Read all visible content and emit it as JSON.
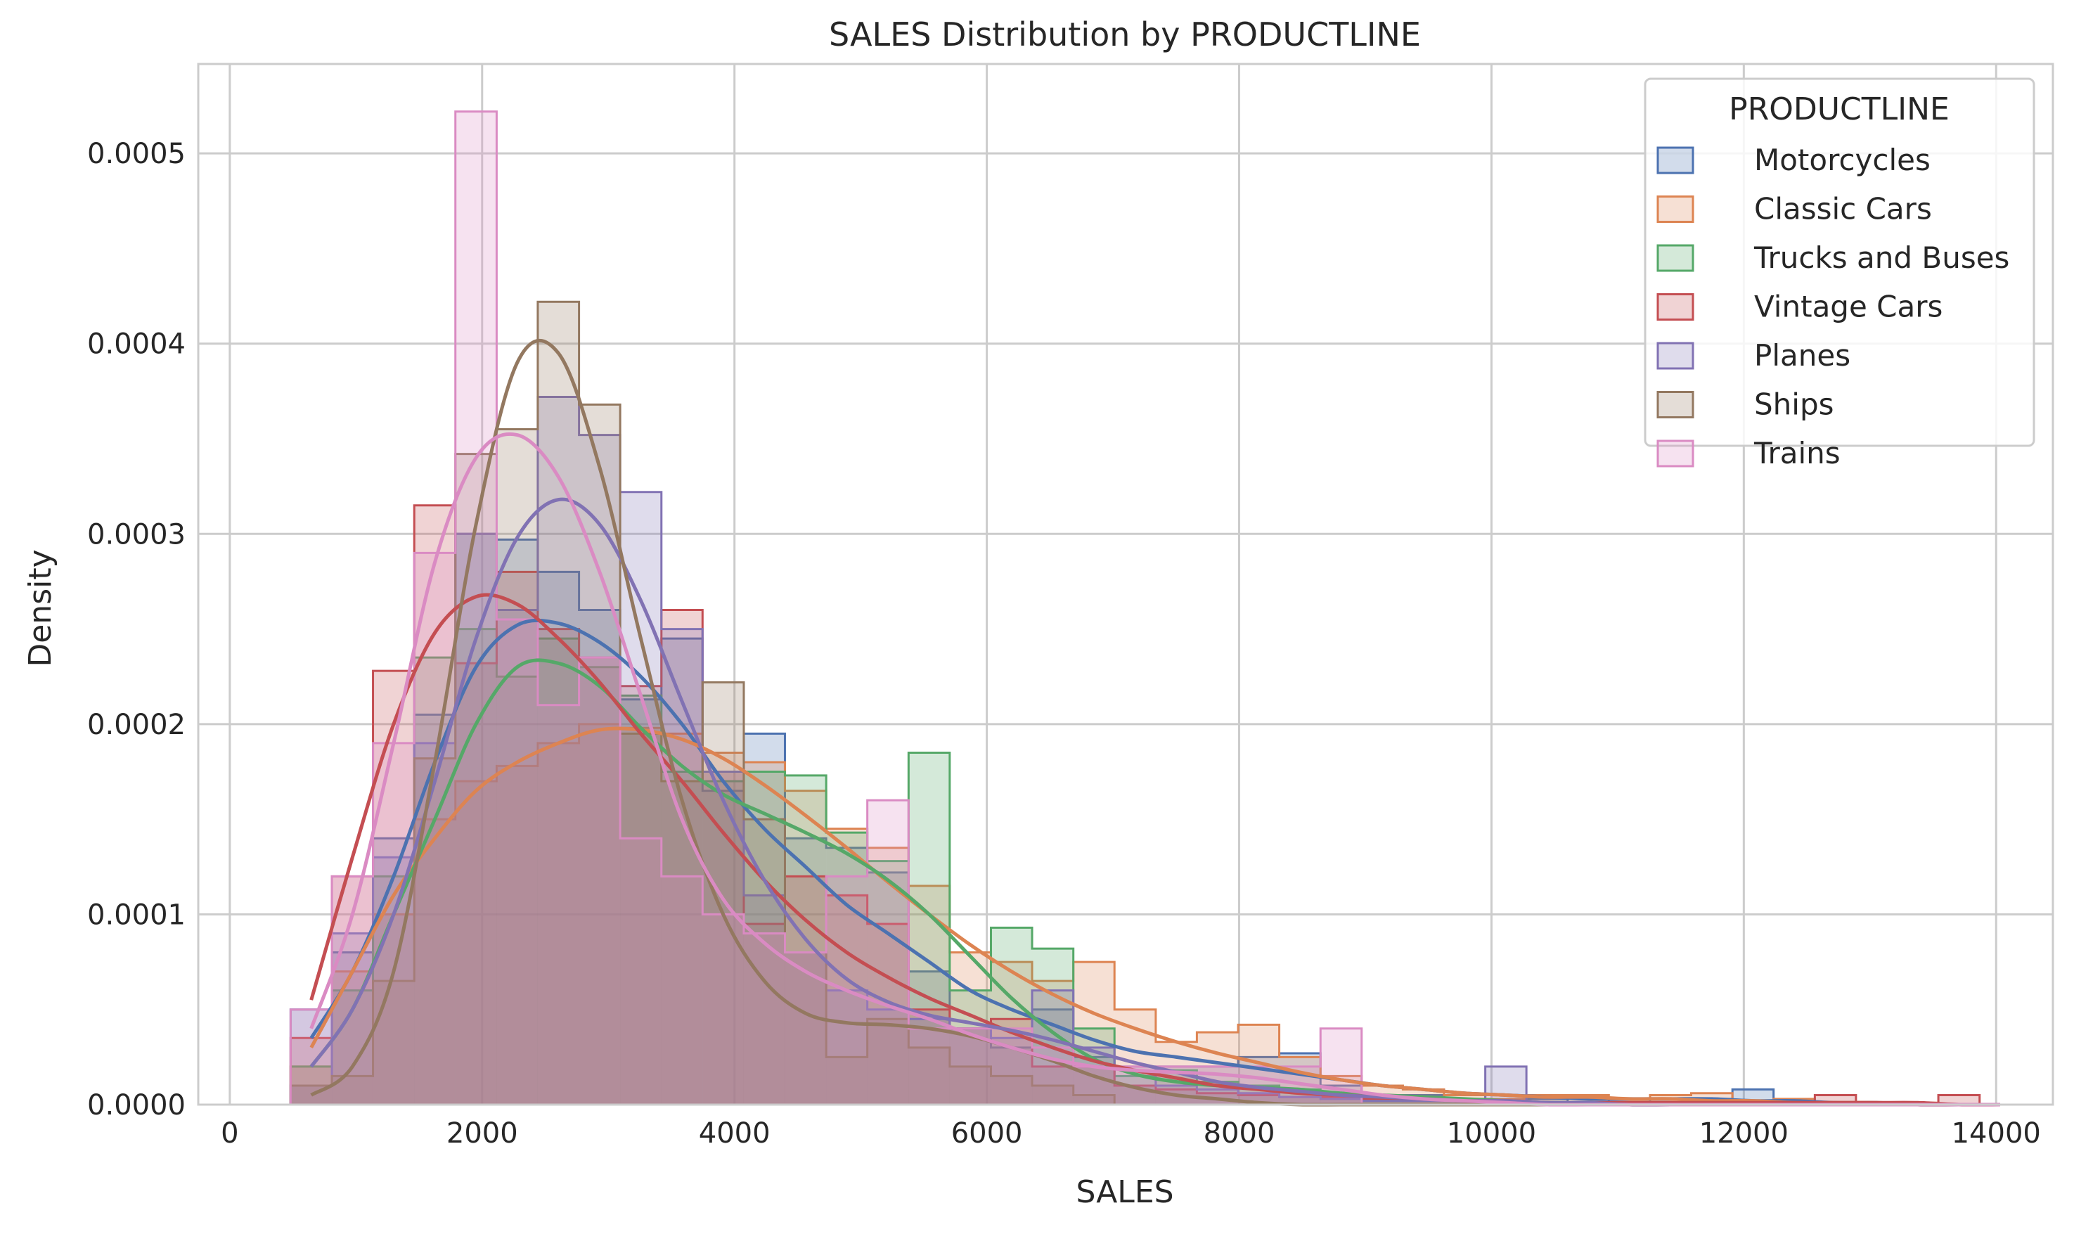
{
  "chart_data": {
    "type": "histogram",
    "title": "SALES Distribution by PRODUCTLINE",
    "xlabel": "SALES",
    "ylabel": "Density",
    "xlim": [
      -250,
      14450
    ],
    "ylim": [
      0,
      0.000547
    ],
    "x_ticks": [
      0,
      2000,
      4000,
      6000,
      8000,
      10000,
      12000,
      14000
    ],
    "x_tick_labels": [
      "0",
      "2000",
      "4000",
      "6000",
      "8000",
      "10000",
      "12000",
      "14000"
    ],
    "y_ticks": [
      0,
      0.0001,
      0.0002,
      0.0003,
      0.0004,
      0.0005
    ],
    "y_tick_labels": [
      "0.0000",
      "0.0001",
      "0.0002",
      "0.0003",
      "0.0004",
      "0.0005"
    ],
    "grid": true,
    "legend": {
      "title": "PRODUCTLINE",
      "position": "top-right"
    },
    "bins": {
      "edges": [
        482,
        809,
        1135,
        1462,
        1788,
        2115,
        2441,
        2768,
        3094,
        3421,
        3747,
        4074,
        4400,
        4727,
        5053,
        5380,
        5706,
        6033,
        6359,
        6686,
        7012,
        7339,
        7665,
        7992,
        8318,
        8645,
        8971,
        9298,
        9624,
        9951,
        10277,
        10604,
        10930,
        11257,
        11583,
        11910,
        12236,
        12563,
        12889,
        13216,
        13542,
        13869,
        14195
      ]
    },
    "series": [
      {
        "name": "Motorcycles",
        "color": "#4c72b0",
        "values": [
          5e-05,
          8e-05,
          0.00014,
          0.000205,
          0.0003,
          0.000297,
          0.00028,
          0.00026,
          0.000213,
          0.000245,
          0.000165,
          0.000195,
          0.00014,
          0.000135,
          0.000122,
          7e-05,
          4e-05,
          3e-05,
          5e-05,
          2.5e-05,
          1e-05,
          2e-05,
          2e-05,
          2.5e-05,
          2.7e-05,
          1e-05,
          5e-06,
          5e-06,
          3e-06,
          0,
          3e-06,
          0,
          3e-06,
          0,
          3e-06,
          8e-06,
          0,
          0,
          0,
          0,
          0,
          0
        ],
        "kde": [
          3.5e-05,
          7e-05,
          0.00012,
          0.00018,
          0.00023,
          0.000252,
          0.000253,
          0.000243,
          0.000225,
          0.0002,
          0.00017,
          0.000145,
          0.000125,
          0.000105,
          9e-05,
          7.5e-05,
          6e-05,
          5e-05,
          4.2e-05,
          3.4e-05,
          2.8e-05,
          2.5e-05,
          2.2e-05,
          1.9e-05,
          1.6e-05,
          1.3e-05,
          1e-05,
          8e-06,
          6e-06,
          5e-06,
          4e-06,
          3e-06,
          3e-06,
          3e-06,
          3e-06,
          2e-06,
          2e-06,
          1e-06,
          1e-06,
          0,
          0,
          0
        ]
      },
      {
        "name": "Classic Cars",
        "color": "#dd8452",
        "values": [
          2e-05,
          7e-05,
          0.0001,
          0.00015,
          0.00017,
          0.000178,
          0.00019,
          0.0002,
          0.000198,
          0.000195,
          0.000185,
          0.00018,
          0.000165,
          0.000145,
          0.000135,
          0.000115,
          8e-05,
          7.5e-05,
          6.5e-05,
          7.5e-05,
          5e-05,
          3.3e-05,
          3.8e-05,
          4.2e-05,
          2.5e-05,
          1.5e-05,
          1e-05,
          8e-06,
          5e-06,
          3e-06,
          5e-06,
          5e-06,
          3e-06,
          5e-06,
          6e-06,
          2e-06,
          3e-06,
          1e-06,
          0,
          1e-06,
          0,
          0
        ],
        "kde": [
          3e-05,
          7e-05,
          0.00011,
          0.00014,
          0.000165,
          0.00018,
          0.00019,
          0.000197,
          0.000197,
          0.000192,
          0.000182,
          0.000168,
          0.000152,
          0.000135,
          0.000117,
          0.0001,
          8.4e-05,
          7e-05,
          5.8e-05,
          4.8e-05,
          4e-05,
          3.3e-05,
          2.7e-05,
          2.2e-05,
          1.7e-05,
          1.3e-05,
          1e-05,
          8e-06,
          6e-06,
          5e-06,
          4e-06,
          4e-06,
          3e-06,
          3e-06,
          2e-06,
          2e-06,
          1e-06,
          1e-06,
          1e-06,
          0,
          0,
          0
        ]
      },
      {
        "name": "Trucks and Buses",
        "color": "#55a868",
        "values": [
          2e-05,
          6e-05,
          0.00012,
          0.000235,
          0.00025,
          0.000225,
          0.000245,
          0.00023,
          0.000215,
          0.000175,
          0.00017,
          0.000175,
          0.000173,
          0.000143,
          0.000128,
          0.000185,
          6e-05,
          9.3e-05,
          8.2e-05,
          4e-05,
          1.5e-05,
          1.8e-05,
          1.2e-05,
          1e-05,
          8e-06,
          6e-06,
          4e-06,
          3e-06,
          2e-06,
          0,
          0,
          0,
          0,
          0,
          0,
          0,
          0,
          0,
          0,
          0,
          0,
          0
        ],
        "kde": [
          2e-05,
          5e-05,
          0.0001,
          0.00015,
          0.0002,
          0.00023,
          0.000232,
          0.00022,
          0.000198,
          0.000178,
          0.000163,
          0.000153,
          0.000143,
          0.000132,
          0.000118,
          0.0001,
          7.8e-05,
          5.6e-05,
          3.8e-05,
          2.4e-05,
          1.6e-05,
          1.2e-05,
          1e-05,
          9e-06,
          8e-06,
          6e-06,
          5e-06,
          4e-06,
          3e-06,
          2e-06,
          1e-06,
          1e-06,
          0,
          0,
          0,
          0,
          0,
          0,
          0,
          0,
          0,
          0
        ]
      },
      {
        "name": "Vintage Cars",
        "color": "#c44e52",
        "values": [
          3.5e-05,
          0.00012,
          0.000228,
          0.000315,
          0.000232,
          0.00028,
          0.00025,
          0.000235,
          0.00022,
          0.00026,
          0.000175,
          9.5e-05,
          0.00012,
          0.00011,
          9.5e-05,
          5e-05,
          4e-05,
          4.5e-05,
          2e-05,
          2e-05,
          1e-05,
          8e-06,
          6e-06,
          5e-06,
          4e-06,
          4e-06,
          3e-06,
          2e-06,
          2e-06,
          0,
          1e-06,
          0,
          1e-06,
          0,
          0,
          0,
          0,
          5e-06,
          0,
          0,
          5e-06,
          0
        ],
        "kde": [
          5.5e-05,
          0.00013,
          0.0002,
          0.000248,
          0.000267,
          0.000263,
          0.000245,
          0.000222,
          0.000195,
          0.00017,
          0.000143,
          0.000118,
          9.7e-05,
          8e-05,
          6.7e-05,
          5.6e-05,
          4.7e-05,
          3.8e-05,
          3e-05,
          2.3e-05,
          1.8e-05,
          1.4e-05,
          1e-05,
          8e-06,
          6e-06,
          5e-06,
          4e-06,
          3e-06,
          2e-06,
          2e-06,
          1e-06,
          1e-06,
          1e-06,
          1e-06,
          1e-06,
          1e-06,
          1e-06,
          1e-06,
          1e-06,
          1e-06,
          0,
          0
        ]
      },
      {
        "name": "Planes",
        "color": "#8172b3",
        "values": [
          1e-05,
          9e-05,
          0.00013,
          0.00019,
          0.0003,
          0.00026,
          0.000372,
          0.000352,
          0.000322,
          0.00025,
          0.000175,
          0.00011,
          8e-05,
          6e-05,
          5e-05,
          4.5e-05,
          4e-05,
          3.5e-05,
          6e-05,
          3e-05,
          2e-05,
          1e-05,
          8e-06,
          6e-06,
          4e-06,
          3e-06,
          2e-06,
          2e-06,
          2e-06,
          2e-05,
          0,
          0,
          0,
          0,
          0,
          0,
          0,
          0,
          0,
          0,
          0,
          0
        ],
        "kde": [
          2e-05,
          5e-05,
          0.0001,
          0.00017,
          0.000245,
          0.000298,
          0.000318,
          0.000305,
          0.000265,
          0.000212,
          0.00016,
          0.000118,
          8.7e-05,
          6.6e-05,
          5.4e-05,
          4.7e-05,
          4.3e-05,
          3.9e-05,
          3.4e-05,
          2.8e-05,
          2.2e-05,
          1.7e-05,
          1.2e-05,
          9e-06,
          7e-06,
          5e-06,
          4e-06,
          3e-06,
          2e-06,
          2e-06,
          1e-06,
          1e-06,
          0,
          0,
          0,
          0,
          0,
          0,
          0,
          0,
          0,
          0
        ]
      },
      {
        "name": "Ships",
        "color": "#937860",
        "values": [
          1e-05,
          1.5e-05,
          6.5e-05,
          0.000182,
          0.000342,
          0.000355,
          0.000422,
          0.000368,
          0.000195,
          0.00017,
          0.000222,
          0.00015,
          8e-05,
          2.5e-05,
          4.5e-05,
          3e-05,
          2e-05,
          1.5e-05,
          1e-05,
          5e-06,
          0,
          0,
          0,
          0,
          0,
          0,
          0,
          0,
          0,
          0,
          0,
          0,
          0,
          0,
          0,
          0,
          0,
          0,
          0,
          0,
          0,
          0
        ],
        "kde": [
          5e-06,
          2e-05,
          7e-05,
          0.00018,
          0.000305,
          0.00039,
          0.000395,
          0.000335,
          0.000245,
          0.00016,
          0.0001,
          6.5e-05,
          4.8e-05,
          4.3e-05,
          4.2e-05,
          4e-05,
          3.6e-05,
          3e-05,
          2.3e-05,
          1.5e-05,
          9e-06,
          5e-06,
          3e-06,
          1e-06,
          0,
          0,
          0,
          0,
          0,
          0,
          0,
          0,
          0,
          0,
          0,
          0,
          0,
          0,
          0,
          0,
          0,
          0
        ]
      },
      {
        "name": "Trains",
        "color": "#da8bc3",
        "values": [
          5e-05,
          0.00012,
          0.00019,
          0.00029,
          0.000522,
          0.000255,
          0.00021,
          0.000235,
          0.00014,
          0.00012,
          0.0001,
          9e-05,
          8e-05,
          0.00012,
          0.00016,
          4e-05,
          4e-05,
          4e-05,
          3e-05,
          2e-05,
          2e-05,
          2e-05,
          2e-05,
          2e-05,
          2e-05,
          4e-05,
          0,
          0,
          0,
          0,
          0,
          0,
          0,
          0,
          0,
          0,
          0,
          0,
          0,
          0,
          0,
          0
        ],
        "kde": [
          4e-05,
          0.0001,
          0.00019,
          0.000285,
          0.00034,
          0.000352,
          0.00033,
          0.00028,
          0.000215,
          0.00015,
          0.000108,
          8.5e-05,
          7e-05,
          6e-05,
          5.2e-05,
          4.5e-05,
          3.7e-05,
          3e-05,
          2.4e-05,
          2e-05,
          1.8e-05,
          1.7e-05,
          1.6e-05,
          1.4e-05,
          1.1e-05,
          8e-06,
          5e-06,
          3e-06,
          2e-06,
          1e-06,
          0,
          0,
          0,
          0,
          0,
          0,
          0,
          0,
          0,
          0,
          0,
          0
        ]
      }
    ]
  }
}
